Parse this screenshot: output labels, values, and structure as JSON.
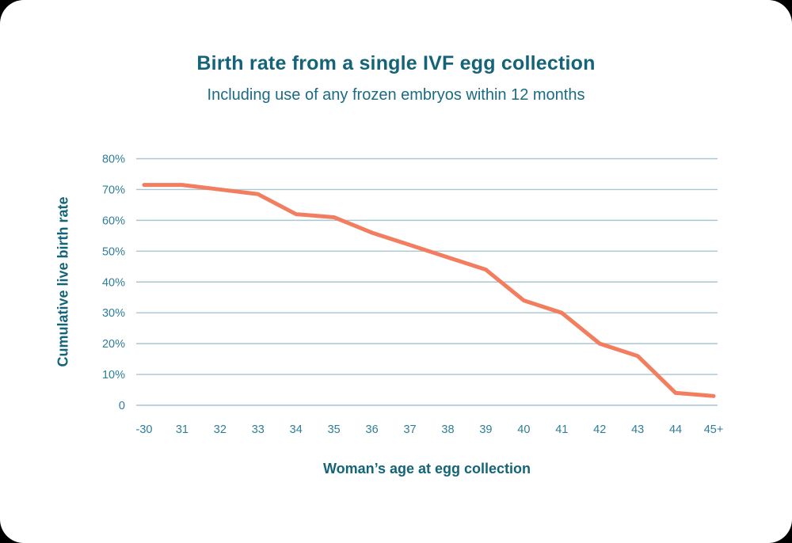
{
  "page": {
    "background_color": "#000000",
    "card_color": "#FFFFFF",
    "title": "Birth rate from a single IVF egg collection",
    "subtitle": "Including use of any frozen embryos within 12 months"
  },
  "colors": {
    "title_text": "#156379",
    "subtitle_text": "#1B6B83",
    "axis_title_text": "#156379",
    "tick_text": "#2F7E99",
    "gridline": "#A9C6D2",
    "series_line": "#F27E5F"
  },
  "chart_data": {
    "type": "line",
    "title": "Birth rate from a single IVF egg collection",
    "subtitle": "Including use of any frozen embryos within 12 months",
    "xlabel": "Woman’s age at egg collection",
    "ylabel": "Cumulative live birth rate",
    "categories": [
      "-30",
      "31",
      "32",
      "33",
      "34",
      "35",
      "36",
      "37",
      "38",
      "39",
      "40",
      "41",
      "42",
      "43",
      "44",
      "45+"
    ],
    "values": [
      71.5,
      71.5,
      70,
      68.5,
      62,
      61,
      56,
      52,
      48,
      44,
      34,
      30,
      20,
      16,
      4,
      3
    ],
    "unit": "%",
    "ylim": [
      0,
      80
    ],
    "ytick_interval": 10,
    "ytick_labels": [
      "80%",
      "70%",
      "60%",
      "50%",
      "40%",
      "30%",
      "20%",
      "10%",
      "0"
    ],
    "grid": "horizontal",
    "legend": "none",
    "line_color": "#F27E5F"
  }
}
